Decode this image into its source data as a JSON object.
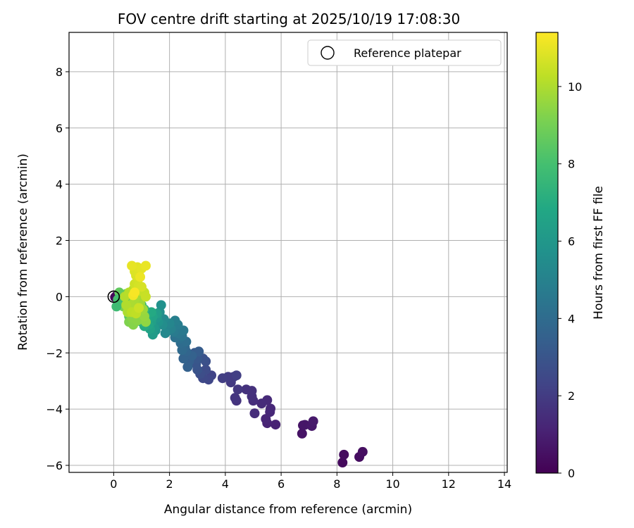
{
  "chart_data": {
    "type": "scatter",
    "title": "FOV centre drift starting at 2025/10/19 17:08:30",
    "xlabel": "Angular distance from reference (arcmin)",
    "ylabel": "Rotation from reference (arcmin)",
    "xlim": [
      -1.6,
      14.1
    ],
    "ylim": [
      -6.25,
      9.4
    ],
    "xticks": [
      0,
      2,
      4,
      6,
      8,
      10,
      12,
      14
    ],
    "yticks": [
      -6,
      -4,
      -2,
      0,
      2,
      4,
      6,
      8
    ],
    "grid": true,
    "legend": {
      "position": "top-right",
      "label": "Reference platepar"
    },
    "reference_point": {
      "x": 0,
      "y": 0
    },
    "colorbar": {
      "label": "Hours from first FF file",
      "min": 0,
      "max": 11.4,
      "ticks": [
        0,
        2,
        4,
        6,
        8,
        10
      ],
      "colormap": "viridis"
    },
    "series": [
      {
        "name": "FOV centre drift",
        "points": [
          [
            0.05,
            -0.02,
            0.1
          ],
          [
            0.1,
            0.03,
            0.2
          ],
          [
            8.2,
            -5.9,
            0.3
          ],
          [
            8.25,
            -5.62,
            0.35
          ],
          [
            8.8,
            -5.7,
            0.4
          ],
          [
            8.92,
            -5.52,
            0.45
          ],
          [
            6.75,
            -4.87,
            0.6
          ],
          [
            6.78,
            -4.58,
            0.65
          ],
          [
            6.85,
            -4.56,
            0.7
          ],
          [
            7.1,
            -4.6,
            0.75
          ],
          [
            7.15,
            -4.43,
            0.8
          ],
          [
            5.8,
            -4.55,
            1.1
          ],
          [
            5.5,
            -4.5,
            1.15
          ],
          [
            5.45,
            -4.35,
            1.2
          ],
          [
            5.6,
            -4.1,
            1.25
          ],
          [
            5.62,
            -3.98,
            1.3
          ],
          [
            5.5,
            -3.68,
            1.35
          ],
          [
            5.3,
            -3.8,
            1.4
          ],
          [
            5.05,
            -4.15,
            1.45
          ],
          [
            5.0,
            -3.7,
            1.5
          ],
          [
            4.95,
            -3.55,
            1.55
          ],
          [
            4.95,
            -3.35,
            1.6
          ],
          [
            4.75,
            -3.3,
            1.65
          ],
          [
            4.4,
            -3.7,
            1.7
          ],
          [
            4.35,
            -3.6,
            1.75
          ],
          [
            4.45,
            -3.3,
            1.8
          ],
          [
            4.2,
            -3.05,
            1.9
          ],
          [
            4.3,
            -2.85,
            1.95
          ],
          [
            4.1,
            -2.85,
            2.0
          ],
          [
            3.9,
            -2.9,
            2.05
          ],
          [
            4.4,
            -2.8,
            2.1
          ],
          [
            3.5,
            -2.8,
            2.3
          ],
          [
            3.4,
            -2.95,
            2.4
          ],
          [
            3.2,
            -2.9,
            2.5
          ],
          [
            3.3,
            -2.6,
            2.6
          ],
          [
            3.1,
            -2.75,
            2.7
          ],
          [
            3.3,
            -2.3,
            2.8
          ],
          [
            3.2,
            -2.2,
            2.85
          ],
          [
            3.0,
            -2.6,
            2.9
          ],
          [
            2.95,
            -2.4,
            3.0
          ],
          [
            3.0,
            -2.2,
            3.1
          ],
          [
            2.9,
            -2.0,
            3.2
          ],
          [
            3.05,
            -1.95,
            3.3
          ],
          [
            2.7,
            -2.3,
            3.4
          ],
          [
            2.65,
            -2.5,
            3.5
          ],
          [
            2.8,
            -2.1,
            3.55
          ],
          [
            2.5,
            -2.2,
            3.6
          ],
          [
            2.6,
            -1.95,
            3.7
          ],
          [
            2.55,
            -1.8,
            3.8
          ],
          [
            2.45,
            -1.9,
            3.9
          ],
          [
            2.4,
            -1.65,
            4.0
          ],
          [
            2.6,
            -1.6,
            4.1
          ],
          [
            2.35,
            -1.5,
            4.2
          ],
          [
            2.2,
            -1.45,
            4.3
          ],
          [
            2.45,
            -1.4,
            4.4
          ],
          [
            2.3,
            -1.3,
            4.5
          ],
          [
            2.5,
            -1.2,
            4.6
          ],
          [
            2.15,
            -1.25,
            4.7
          ],
          [
            2.3,
            -1.0,
            4.8
          ],
          [
            2.2,
            -0.85,
            4.9
          ],
          [
            2.05,
            -1.15,
            5.0
          ],
          [
            1.9,
            -1.1,
            5.1
          ],
          [
            2.0,
            -0.95,
            5.2
          ],
          [
            1.85,
            -1.3,
            5.3
          ],
          [
            1.8,
            -0.8,
            5.4
          ],
          [
            1.75,
            -1.0,
            5.5
          ],
          [
            1.65,
            -0.55,
            5.6
          ],
          [
            1.7,
            -0.3,
            5.7
          ],
          [
            1.6,
            -0.9,
            5.8
          ],
          [
            1.5,
            -1.2,
            5.9
          ],
          [
            1.55,
            -0.75,
            6.0
          ],
          [
            1.45,
            -1.1,
            6.1
          ],
          [
            1.4,
            -1.35,
            6.2
          ],
          [
            1.55,
            -0.6,
            6.3
          ],
          [
            1.35,
            -0.9,
            6.4
          ],
          [
            1.3,
            -1.15,
            6.5
          ],
          [
            1.4,
            -0.7,
            6.6
          ],
          [
            1.25,
            -1.0,
            6.7
          ],
          [
            1.2,
            -0.85,
            6.8
          ],
          [
            1.35,
            -0.55,
            6.9
          ],
          [
            1.1,
            -1.05,
            7.0
          ],
          [
            1.15,
            -0.7,
            7.1
          ],
          [
            1.0,
            -0.9,
            7.2
          ],
          [
            1.05,
            -0.6,
            7.3
          ],
          [
            0.95,
            -0.75,
            7.4
          ],
          [
            1.1,
            -0.45,
            7.5
          ],
          [
            0.9,
            -0.5,
            7.6
          ],
          [
            0.85,
            -0.8,
            7.7
          ],
          [
            1.0,
            -0.3,
            7.8
          ],
          [
            0.8,
            -0.35,
            7.9
          ],
          [
            0.75,
            -0.6,
            8.0
          ],
          [
            0.9,
            -0.15,
            8.1
          ],
          [
            0.7,
            -0.2,
            8.2
          ],
          [
            0.6,
            -0.45,
            8.3
          ],
          [
            0.55,
            -0.7,
            8.4
          ],
          [
            0.65,
            -0.05,
            8.5
          ],
          [
            0.5,
            -0.25,
            8.6
          ],
          [
            0.4,
            -0.1,
            8.7
          ],
          [
            0.45,
            0.1,
            8.8
          ],
          [
            0.3,
            0.05,
            8.9
          ],
          [
            0.35,
            -0.35,
            9.0
          ],
          [
            0.2,
            0.15,
            8.6
          ],
          [
            0.25,
            -0.15,
            8.3
          ],
          [
            0.15,
            -0.1,
            8.0
          ],
          [
            0.1,
            -0.35,
            7.8
          ],
          [
            0.55,
            -0.9,
            9.2
          ],
          [
            0.7,
            -1.0,
            9.3
          ],
          [
            0.65,
            -0.75,
            9.35
          ],
          [
            0.85,
            -0.85,
            9.4
          ],
          [
            1.15,
            -0.9,
            9.5
          ],
          [
            1.1,
            -0.7,
            9.6
          ],
          [
            1.05,
            -0.45,
            9.7
          ],
          [
            0.95,
            -0.25,
            9.75
          ],
          [
            1.0,
            -0.05,
            9.8
          ],
          [
            0.85,
            0.1,
            9.85
          ],
          [
            0.75,
            -0.1,
            9.9
          ],
          [
            0.6,
            -0.3,
            9.95
          ],
          [
            0.5,
            -0.55,
            10.0
          ],
          [
            0.45,
            -0.3,
            10.05
          ],
          [
            0.4,
            0.0,
            10.1
          ],
          [
            0.55,
            0.15,
            10.15
          ],
          [
            0.7,
            0.25,
            10.2
          ],
          [
            0.65,
            -0.55,
            10.25
          ],
          [
            0.8,
            -0.6,
            10.3
          ],
          [
            0.95,
            0.2,
            10.35
          ],
          [
            1.1,
            0.15,
            10.4
          ],
          [
            1.15,
            0.0,
            10.45
          ],
          [
            0.9,
            -0.4,
            10.5
          ],
          [
            0.75,
            0.45,
            10.55
          ],
          [
            0.85,
            0.55,
            10.6
          ],
          [
            0.9,
            0.4,
            10.65
          ],
          [
            1.0,
            0.35,
            10.7
          ],
          [
            0.8,
            0.75,
            10.75
          ],
          [
            0.75,
            0.9,
            10.8
          ],
          [
            0.9,
            0.85,
            10.85
          ],
          [
            0.85,
            1.05,
            10.9
          ],
          [
            1.0,
            1.0,
            10.95
          ],
          [
            0.65,
            1.1,
            11.0
          ],
          [
            1.15,
            1.1,
            11.05
          ],
          [
            0.95,
            0.7,
            11.1
          ],
          [
            0.7,
            0.05,
            11.2
          ],
          [
            0.75,
            0.15,
            11.3
          ]
        ]
      }
    ]
  }
}
